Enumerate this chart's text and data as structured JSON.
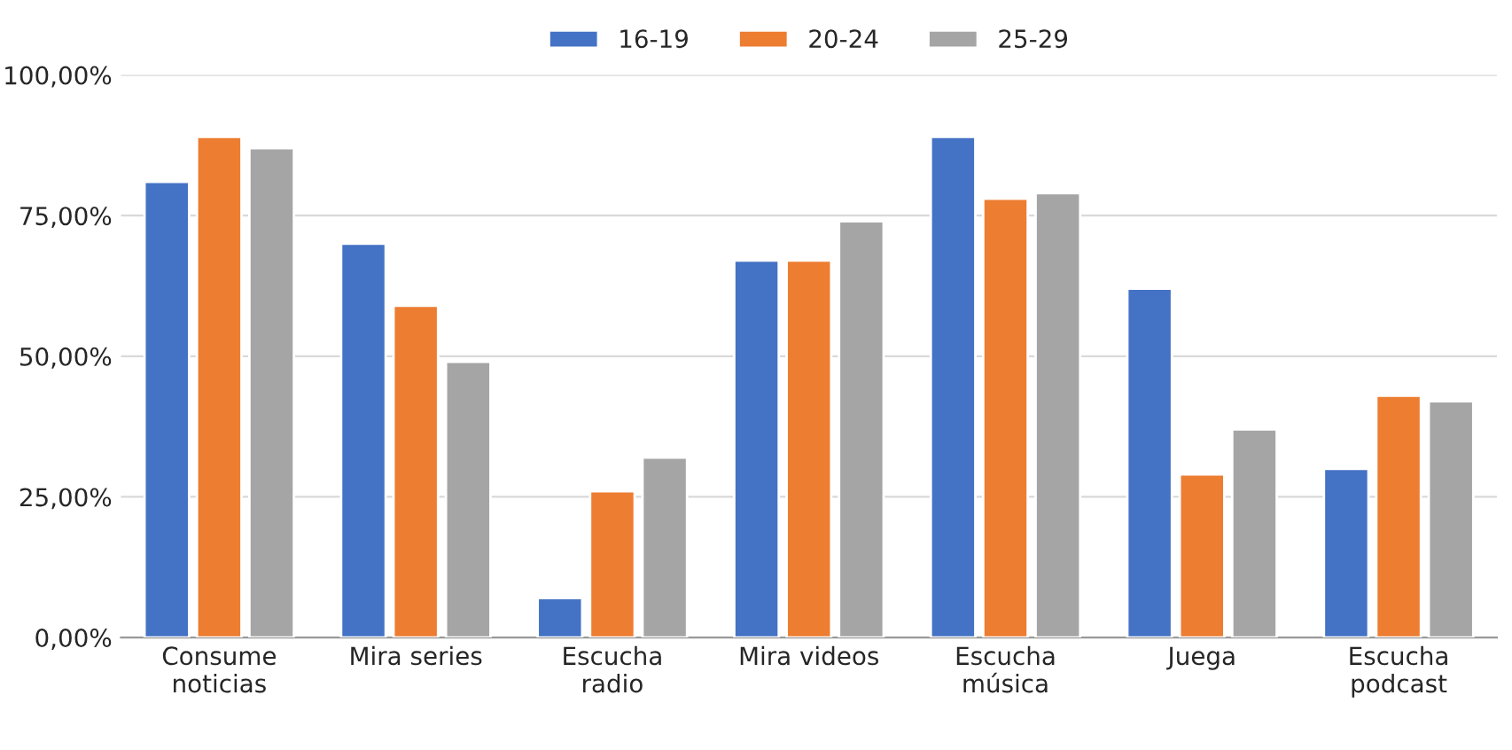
{
  "chart_data": {
    "type": "bar",
    "categories": [
      "Consume\nnoticias",
      "Mira series",
      "Escucha\nradio",
      "Mira videos",
      "Escucha\nmúsica",
      "Juega",
      "Escucha\npodcast"
    ],
    "series": [
      {
        "name": "16-19",
        "color": "#4472c4",
        "values": [
          81,
          70,
          7,
          67,
          89,
          62,
          30
        ]
      },
      {
        "name": "20-24",
        "color": "#ed7d31",
        "values": [
          89,
          59,
          26,
          67,
          78,
          29,
          43
        ]
      },
      {
        "name": "25-29",
        "color": "#a5a5a5",
        "values": [
          87,
          49,
          32,
          74,
          79,
          37,
          42
        ]
      }
    ],
    "ylim": [
      0,
      100
    ],
    "yticks": [
      {
        "value": 0,
        "label": "0,00%"
      },
      {
        "value": 25,
        "label": "25,00%"
      },
      {
        "value": 50,
        "label": "50,00%"
      },
      {
        "value": 75,
        "label": "75,00%"
      },
      {
        "value": 100,
        "label": "100,00%"
      }
    ],
    "grid": "y",
    "legend": "top"
  }
}
